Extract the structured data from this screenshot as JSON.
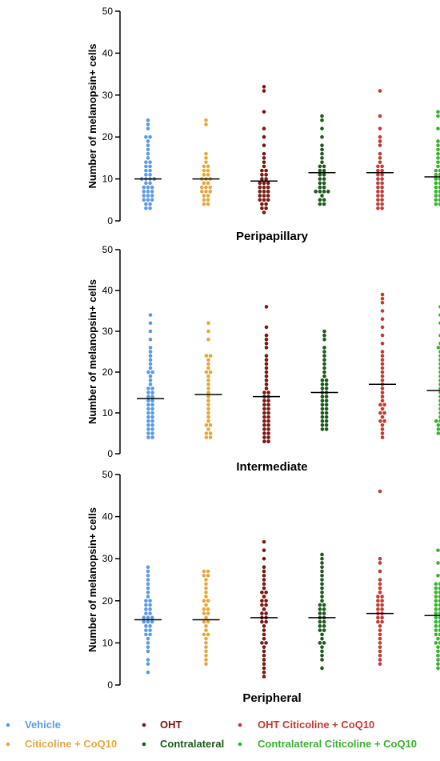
{
  "chart_data": [
    {
      "type": "scatter",
      "title": "Peripapillary",
      "ylabel": "Number of melanopsin+ cells",
      "ylim": [
        0,
        50
      ],
      "yticks": [
        0,
        10,
        20,
        30,
        40,
        50
      ],
      "series": [
        {
          "name": "Vehicle",
          "color": "#5b9be6",
          "mean": 10,
          "values": [
            3,
            3,
            4,
            4,
            5,
            5,
            5,
            6,
            6,
            6,
            7,
            7,
            7,
            8,
            8,
            8,
            9,
            9,
            10,
            10,
            10,
            10,
            11,
            11,
            12,
            12,
            13,
            13,
            14,
            14,
            15,
            16,
            17,
            18,
            19,
            20,
            20,
            22,
            23,
            24
          ]
        },
        {
          "name": "Citicoline + CoQ10",
          "color": "#e6a73c",
          "mean": 10,
          "values": [
            4,
            4,
            5,
            5,
            6,
            6,
            7,
            7,
            7,
            8,
            8,
            8,
            9,
            9,
            10,
            10,
            10,
            11,
            11,
            12,
            12,
            13,
            13,
            14,
            15,
            16,
            23,
            24
          ]
        },
        {
          "name": "OHT",
          "color": "#7a1712",
          "mean": 9.5,
          "values": [
            2,
            3,
            3,
            4,
            4,
            5,
            5,
            5,
            6,
            6,
            6,
            7,
            7,
            7,
            8,
            8,
            8,
            9,
            9,
            9,
            10,
            10,
            11,
            11,
            12,
            12,
            13,
            14,
            15,
            16,
            18,
            20,
            22,
            26,
            31,
            32
          ]
        },
        {
          "name": "Contralateral",
          "color": "#1b5a1b",
          "mean": 11.5,
          "values": [
            4,
            4,
            5,
            5,
            6,
            7,
            7,
            7,
            7,
            8,
            8,
            9,
            9,
            10,
            10,
            11,
            11,
            12,
            12,
            13,
            13,
            14,
            15,
            16,
            17,
            18,
            20,
            22,
            24,
            25
          ]
        },
        {
          "name": "OHT Citicoline + CoQ10",
          "color": "#c23b33",
          "mean": 11.5,
          "values": [
            3,
            3,
            4,
            4,
            5,
            5,
            6,
            6,
            7,
            7,
            8,
            8,
            9,
            9,
            10,
            10,
            11,
            11,
            12,
            12,
            13,
            13,
            14,
            15,
            16,
            18,
            19,
            20,
            22,
            25,
            31
          ]
        },
        {
          "name": "Contralateral Citicoline + CoQ10",
          "color": "#33b52a",
          "mean": 10.5,
          "values": [
            4,
            4,
            5,
            5,
            6,
            6,
            7,
            7,
            8,
            8,
            9,
            9,
            10,
            10,
            11,
            11,
            12,
            12,
            13,
            14,
            15,
            16,
            17,
            18,
            19,
            22,
            25,
            26
          ]
        }
      ]
    },
    {
      "type": "scatter",
      "title": "Intermediate",
      "ylabel": "Number of melanopsin+ cells",
      "ylim": [
        0,
        50
      ],
      "yticks": [
        0,
        10,
        20,
        30,
        40,
        50
      ],
      "series": [
        {
          "name": "Vehicle",
          "color": "#5b9be6",
          "mean": 13.5,
          "values": [
            4,
            4,
            5,
            5,
            6,
            6,
            7,
            7,
            8,
            8,
            9,
            9,
            10,
            10,
            11,
            11,
            12,
            12,
            13,
            13,
            14,
            14,
            15,
            15,
            16,
            16,
            17,
            18,
            19,
            20,
            20,
            21,
            22,
            23,
            24,
            25,
            26,
            28,
            30,
            32,
            34
          ]
        },
        {
          "name": "Citicoline + CoQ10",
          "color": "#e6a73c",
          "mean": 14.5,
          "values": [
            4,
            4,
            5,
            5,
            6,
            7,
            7,
            8,
            9,
            10,
            11,
            12,
            13,
            14,
            15,
            16,
            17,
            18,
            19,
            20,
            20,
            21,
            22,
            23,
            24,
            24,
            28,
            30,
            32
          ]
        },
        {
          "name": "OHT",
          "color": "#7a1712",
          "mean": 14,
          "values": [
            3,
            3,
            4,
            4,
            5,
            5,
            6,
            6,
            7,
            7,
            8,
            8,
            9,
            9,
            10,
            10,
            11,
            11,
            12,
            12,
            13,
            13,
            14,
            14,
            15,
            15,
            16,
            17,
            18,
            19,
            20,
            21,
            22,
            23,
            24,
            26,
            27,
            28,
            29,
            31,
            36
          ]
        },
        {
          "name": "Contralateral",
          "color": "#1b5a1b",
          "mean": 15,
          "values": [
            6,
            6,
            7,
            7,
            8,
            8,
            9,
            9,
            10,
            10,
            11,
            11,
            12,
            12,
            13,
            13,
            14,
            14,
            15,
            15,
            16,
            16,
            17,
            17,
            18,
            18,
            19,
            20,
            21,
            22,
            23,
            24,
            25,
            26,
            28,
            29,
            30
          ]
        },
        {
          "name": "OHT Citicoline + CoQ10",
          "color": "#c23b33",
          "mean": 17,
          "values": [
            4,
            5,
            6,
            7,
            8,
            8,
            9,
            10,
            10,
            11,
            12,
            12,
            13,
            14,
            15,
            16,
            17,
            18,
            19,
            20,
            21,
            22,
            23,
            24,
            25,
            27,
            29,
            31,
            33,
            35,
            37,
            38,
            39
          ]
        },
        {
          "name": "Contralateral Citicoline + CoQ10",
          "color": "#33b52a",
          "mean": 15.5,
          "values": [
            5,
            5,
            6,
            6,
            7,
            7,
            8,
            8,
            8,
            9,
            10,
            11,
            12,
            13,
            14,
            15,
            16,
            17,
            18,
            19,
            20,
            21,
            22,
            23,
            24,
            25,
            26,
            26,
            27,
            29,
            32,
            34,
            36
          ]
        }
      ]
    },
    {
      "type": "scatter",
      "title": "Peripheral",
      "ylabel": "Number of melanopsin+ cells",
      "ylim": [
        0,
        50
      ],
      "yticks": [
        0,
        10,
        20,
        30,
        40,
        50
      ],
      "series": [
        {
          "name": "Vehicle",
          "color": "#5b9be6",
          "mean": 15.5,
          "values": [
            3,
            5,
            6,
            8,
            9,
            10,
            11,
            12,
            12,
            13,
            13,
            14,
            14,
            15,
            15,
            15,
            16,
            16,
            16,
            17,
            17,
            18,
            18,
            19,
            19,
            20,
            20,
            21,
            22,
            23,
            24,
            25,
            26,
            27,
            28
          ]
        },
        {
          "name": "Citicoline + CoQ10",
          "color": "#e6a73c",
          "mean": 15.5,
          "values": [
            5,
            6,
            7,
            8,
            9,
            10,
            11,
            12,
            12,
            13,
            14,
            15,
            15,
            16,
            17,
            17,
            18,
            18,
            19,
            20,
            20,
            21,
            22,
            23,
            24,
            25,
            26,
            26,
            27,
            27
          ]
        },
        {
          "name": "OHT",
          "color": "#7a1712",
          "mean": 16,
          "values": [
            2,
            3,
            4,
            5,
            6,
            7,
            8,
            9,
            10,
            10,
            11,
            12,
            13,
            14,
            15,
            15,
            16,
            16,
            17,
            17,
            18,
            19,
            19,
            20,
            20,
            21,
            22,
            22,
            23,
            24,
            25,
            26,
            27,
            28,
            30,
            32,
            34
          ]
        },
        {
          "name": "Contralateral",
          "color": "#1b5a1b",
          "mean": 16,
          "values": [
            4,
            6,
            7,
            8,
            9,
            10,
            10,
            11,
            12,
            13,
            13,
            14,
            14,
            15,
            15,
            16,
            16,
            17,
            17,
            18,
            18,
            19,
            19,
            20,
            21,
            22,
            23,
            24,
            25,
            26,
            27,
            28,
            29,
            30,
            31
          ]
        },
        {
          "name": "OHT Citicoline + CoQ10",
          "color": "#c23b33",
          "mean": 17,
          "values": [
            5,
            6,
            7,
            8,
            9,
            10,
            11,
            12,
            13,
            14,
            15,
            15,
            16,
            16,
            17,
            17,
            18,
            18,
            19,
            19,
            20,
            20,
            21,
            21,
            22,
            23,
            24,
            25,
            27,
            29,
            30,
            46
          ]
        },
        {
          "name": "Contralateral Citicoline + CoQ10",
          "color": "#33b52a",
          "mean": 16.5,
          "values": [
            4,
            5,
            6,
            7,
            8,
            9,
            10,
            10,
            11,
            12,
            12,
            13,
            13,
            14,
            14,
            15,
            15,
            16,
            16,
            17,
            17,
            18,
            18,
            19,
            19,
            20,
            20,
            21,
            21,
            22,
            22,
            23,
            23,
            24,
            24,
            26,
            29,
            32
          ]
        }
      ]
    }
  ],
  "legend": [
    {
      "name": "Vehicle",
      "color": "#5b9be6"
    },
    {
      "name": "OHT",
      "color": "#7a1712"
    },
    {
      "name": "OHT Citicoline + CoQ10",
      "color": "#c23b33"
    },
    {
      "name": "Citicoline + CoQ10",
      "color": "#e6a73c"
    },
    {
      "name": "Contralateral",
      "color": "#1b5a1b"
    },
    {
      "name": "Contralateral Citicoline + CoQ10",
      "color": "#33b52a"
    }
  ]
}
